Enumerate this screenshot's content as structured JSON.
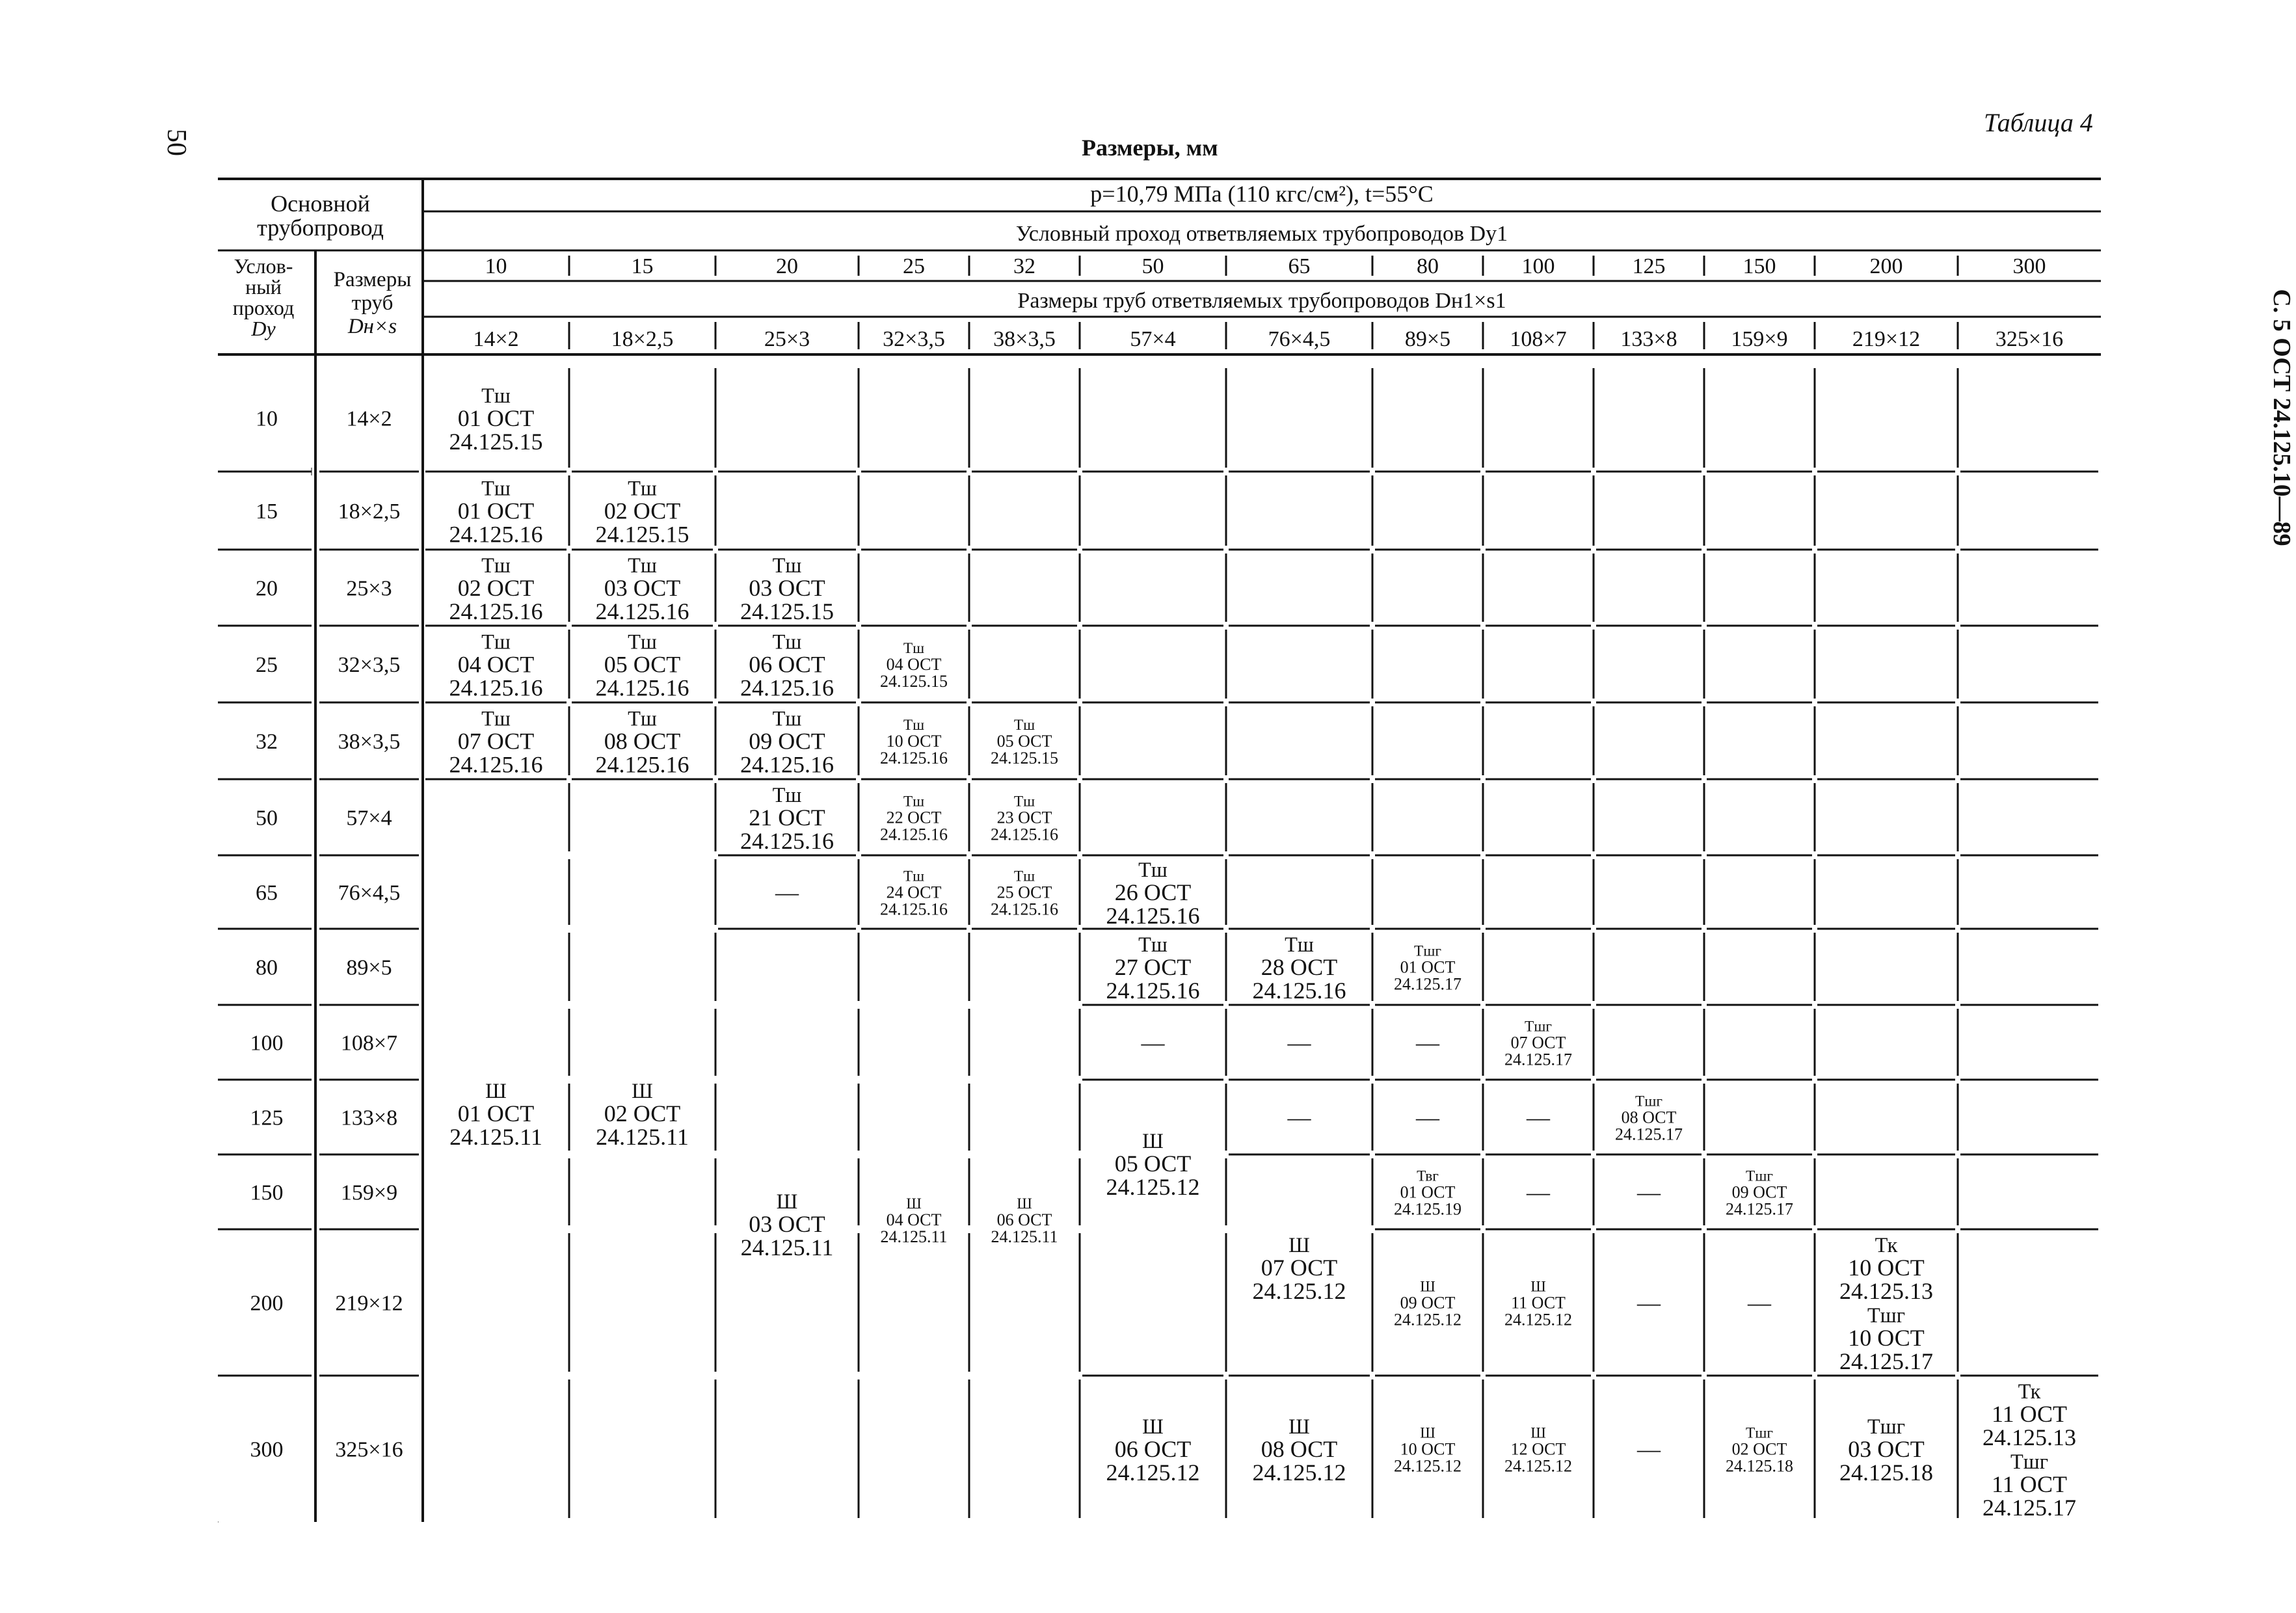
{
  "page_number": "50",
  "side_header": "С. 5 ОСТ 24.125.10—89",
  "table_title": "Таблица 4",
  "subtitle": "Размеры, мм",
  "header": {
    "main_pipe": "Основной трубопровод",
    "dn_label": "Услов-ный проход Dу",
    "dn_lines": [
      "Услов-",
      "ный",
      "проход",
      "Dу"
    ],
    "size_lines": [
      "Размеры",
      "труб",
      "Dн×s"
    ],
    "pressure": "p=10,79 МПа (110 кгс/см²), t=55°C",
    "branch_dn_title": "Условный проход ответвляемых трубопроводов Dу1",
    "branch_size_title": "Размеры труб ответвляемых трубопроводов Dн1×s1"
  },
  "branch_dn": [
    "10",
    "15",
    "20",
    "25",
    "32",
    "50",
    "65",
    "80",
    "100",
    "125",
    "150",
    "200",
    "300"
  ],
  "branch_sizes": [
    "14×2",
    "18×2,5",
    "25×3",
    "32×3,5",
    "38×3,5",
    "57×4",
    "76×4,5",
    "89×5",
    "108×7",
    "133×8",
    "159×9",
    "219×12",
    "325×16"
  ],
  "rows": [
    {
      "dn": "10",
      "size": "14×2"
    },
    {
      "dn": "15",
      "size": "18×2,5"
    },
    {
      "dn": "20",
      "size": "25×3"
    },
    {
      "dn": "25",
      "size": "32×3,5"
    },
    {
      "dn": "32",
      "size": "38×3,5"
    },
    {
      "dn": "50",
      "size": "57×4"
    },
    {
      "dn": "65",
      "size": "76×4,5"
    },
    {
      "dn": "80",
      "size": "89×5"
    },
    {
      "dn": "100",
      "size": "108×7"
    },
    {
      "dn": "125",
      "size": "133×8"
    },
    {
      "dn": "150",
      "size": "159×9"
    },
    {
      "dn": "200",
      "size": "219×12"
    },
    {
      "dn": "300",
      "size": "325×16"
    }
  ],
  "cells": [
    {
      "r": 0,
      "c": 0,
      "lines": [
        "Тш",
        "01 ОСТ",
        "24.125.15"
      ]
    },
    {
      "r": 1,
      "c": 0,
      "lines": [
        "Тш",
        "01 ОСТ",
        "24.125.16"
      ]
    },
    {
      "r": 1,
      "c": 1,
      "lines": [
        "Тш",
        "02 ОСТ",
        "24.125.15"
      ]
    },
    {
      "r": 2,
      "c": 0,
      "lines": [
        "Тш",
        "02 ОСТ",
        "24.125.16"
      ]
    },
    {
      "r": 2,
      "c": 1,
      "lines": [
        "Тш",
        "03 ОСТ",
        "24.125.16"
      ]
    },
    {
      "r": 2,
      "c": 2,
      "lines": [
        "Тш",
        "03 ОСТ",
        "24.125.15"
      ]
    },
    {
      "r": 3,
      "c": 0,
      "lines": [
        "Тш",
        "04 ОСТ",
        "24.125.16"
      ]
    },
    {
      "r": 3,
      "c": 1,
      "lines": [
        "Тш",
        "05 ОСТ",
        "24.125.16"
      ]
    },
    {
      "r": 3,
      "c": 2,
      "lines": [
        "Тш",
        "06 ОСТ",
        "24.125.16"
      ]
    },
    {
      "r": 3,
      "c": 3,
      "lines": [
        "Тш",
        "04 ОСТ",
        "24.125.15"
      ],
      "small": true
    },
    {
      "r": 4,
      "c": 0,
      "lines": [
        "Тш",
        "07 ОСТ",
        "24.125.16"
      ]
    },
    {
      "r": 4,
      "c": 1,
      "lines": [
        "Тш",
        "08 ОСТ",
        "24.125.16"
      ]
    },
    {
      "r": 4,
      "c": 2,
      "lines": [
        "Тш",
        "09 ОСТ",
        "24.125.16"
      ]
    },
    {
      "r": 4,
      "c": 3,
      "lines": [
        "Тш",
        "10 ОСТ",
        "24.125.16"
      ],
      "small": true
    },
    {
      "r": 4,
      "c": 4,
      "lines": [
        "Тш",
        "05 ОСТ",
        "24.125.15"
      ],
      "small": true
    },
    {
      "r": 5,
      "c": 0,
      "r2": 12,
      "lines": [
        "Ш",
        "01 ОСТ",
        "24.125.11"
      ]
    },
    {
      "r": 5,
      "c": 1,
      "r2": 12,
      "lines": [
        "Ш",
        "02 ОСТ",
        "24.125.11"
      ]
    },
    {
      "r": 5,
      "c": 2,
      "lines": [
        "Тш",
        "21 ОСТ",
        "24.125.16"
      ]
    },
    {
      "r": 5,
      "c": 3,
      "lines": [
        "Тш",
        "22 ОСТ",
        "24.125.16"
      ],
      "small": true
    },
    {
      "r": 5,
      "c": 4,
      "lines": [
        "Тш",
        "23 ОСТ",
        "24.125.16"
      ],
      "small": true
    },
    {
      "r": 6,
      "c": 2,
      "lines": [
        "—"
      ]
    },
    {
      "r": 6,
      "c": 3,
      "lines": [
        "Тш",
        "24 ОСТ",
        "24.125.16"
      ],
      "small": true
    },
    {
      "r": 6,
      "c": 4,
      "lines": [
        "Тш",
        "25 ОСТ",
        "24.125.16"
      ],
      "small": true
    },
    {
      "r": 6,
      "c": 5,
      "lines": [
        "Тш",
        "26 ОСТ",
        "24.125.16"
      ]
    },
    {
      "r": 7,
      "c": 2,
      "r2": 12,
      "lines": [
        "Ш",
        "03 ОСТ",
        "24.125.11"
      ]
    },
    {
      "r": 7,
      "c": 3,
      "r2": 12,
      "lines": [
        "Ш",
        "04 ОСТ",
        "24.125.11"
      ],
      "small": true
    },
    {
      "r": 7,
      "c": 4,
      "r2": 12,
      "lines": [
        "Ш",
        "06 ОСТ",
        "24.125.11"
      ],
      "small": true
    },
    {
      "r": 7,
      "c": 5,
      "lines": [
        "Тш",
        "27 ОСТ",
        "24.125.16"
      ]
    },
    {
      "r": 7,
      "c": 6,
      "lines": [
        "Тш",
        "28 ОСТ",
        "24.125.16"
      ]
    },
    {
      "r": 7,
      "c": 7,
      "lines": [
        "Тшг",
        "01 ОСТ",
        "24.125.17"
      ],
      "small": true
    },
    {
      "r": 8,
      "c": 5,
      "lines": [
        "—"
      ]
    },
    {
      "r": 8,
      "c": 6,
      "lines": [
        "—"
      ]
    },
    {
      "r": 8,
      "c": 7,
      "lines": [
        "—"
      ]
    },
    {
      "r": 8,
      "c": 8,
      "lines": [
        "Тшг",
        "07 ОСТ",
        "24.125.17"
      ],
      "small": true
    },
    {
      "r": 9,
      "c": 5,
      "r2": 11,
      "lines": [
        "Ш",
        "05 ОСТ",
        "24.125.12"
      ]
    },
    {
      "r": 9,
      "c": 6,
      "lines": [
        "—"
      ]
    },
    {
      "r": 9,
      "c": 7,
      "lines": [
        "—"
      ]
    },
    {
      "r": 9,
      "c": 8,
      "lines": [
        "—"
      ]
    },
    {
      "r": 9,
      "c": 9,
      "lines": [
        "Тшг",
        "08 ОСТ",
        "24.125.17"
      ],
      "small": true
    },
    {
      "r": 10,
      "c": 6,
      "r2": 11,
      "lines": [
        "Ш",
        "07 ОСТ",
        "24.125.12"
      ]
    },
    {
      "r": 10,
      "c": 7,
      "lines": [
        "Твг",
        "01 ОСТ",
        "24.125.19"
      ],
      "small": true
    },
    {
      "r": 10,
      "c": 8,
      "lines": [
        "—"
      ]
    },
    {
      "r": 10,
      "c": 9,
      "lines": [
        "—"
      ]
    },
    {
      "r": 10,
      "c": 10,
      "lines": [
        "Тшг",
        "09 ОСТ",
        "24.125.17"
      ],
      "small": true
    },
    {
      "r": 11,
      "c": 7,
      "lines": [
        "Ш",
        "09 ОСТ",
        "24.125.12"
      ],
      "small": true
    },
    {
      "r": 11,
      "c": 8,
      "lines": [
        "Ш",
        "11 ОСТ",
        "24.125.12"
      ],
      "small": true
    },
    {
      "r": 11,
      "c": 9,
      "lines": [
        "—"
      ]
    },
    {
      "r": 11,
      "c": 10,
      "lines": [
        "—"
      ]
    },
    {
      "r": 11,
      "c": 11,
      "lines": [
        "Тк",
        "10 ОСТ",
        "24.125.13",
        "Тшг",
        "10 ОСТ",
        "24.125.17"
      ]
    },
    {
      "r": 12,
      "c": 5,
      "lines": [
        "Ш",
        "06 ОСТ",
        "24.125.12"
      ]
    },
    {
      "r": 12,
      "c": 6,
      "lines": [
        "Ш",
        "08 ОСТ",
        "24.125.12"
      ]
    },
    {
      "r": 12,
      "c": 7,
      "lines": [
        "Ш",
        "10 ОСТ",
        "24.125.12"
      ],
      "small": true
    },
    {
      "r": 12,
      "c": 8,
      "lines": [
        "Ш",
        "12 ОСТ",
        "24.125.12"
      ],
      "small": true
    },
    {
      "r": 12,
      "c": 9,
      "lines": [
        "—"
      ]
    },
    {
      "r": 12,
      "c": 10,
      "lines": [
        "Тшг",
        "02 ОСТ",
        "24.125.18"
      ],
      "small": true
    },
    {
      "r": 12,
      "c": 11,
      "lines": [
        "Тшг",
        "03 ОСТ",
        "24.125.18"
      ]
    },
    {
      "r": 12,
      "c": 12,
      "lines": [
        "Тк",
        "11 ОСТ",
        "24.125.13",
        "Тшг",
        "11 ОСТ",
        "24.125.17"
      ]
    }
  ]
}
